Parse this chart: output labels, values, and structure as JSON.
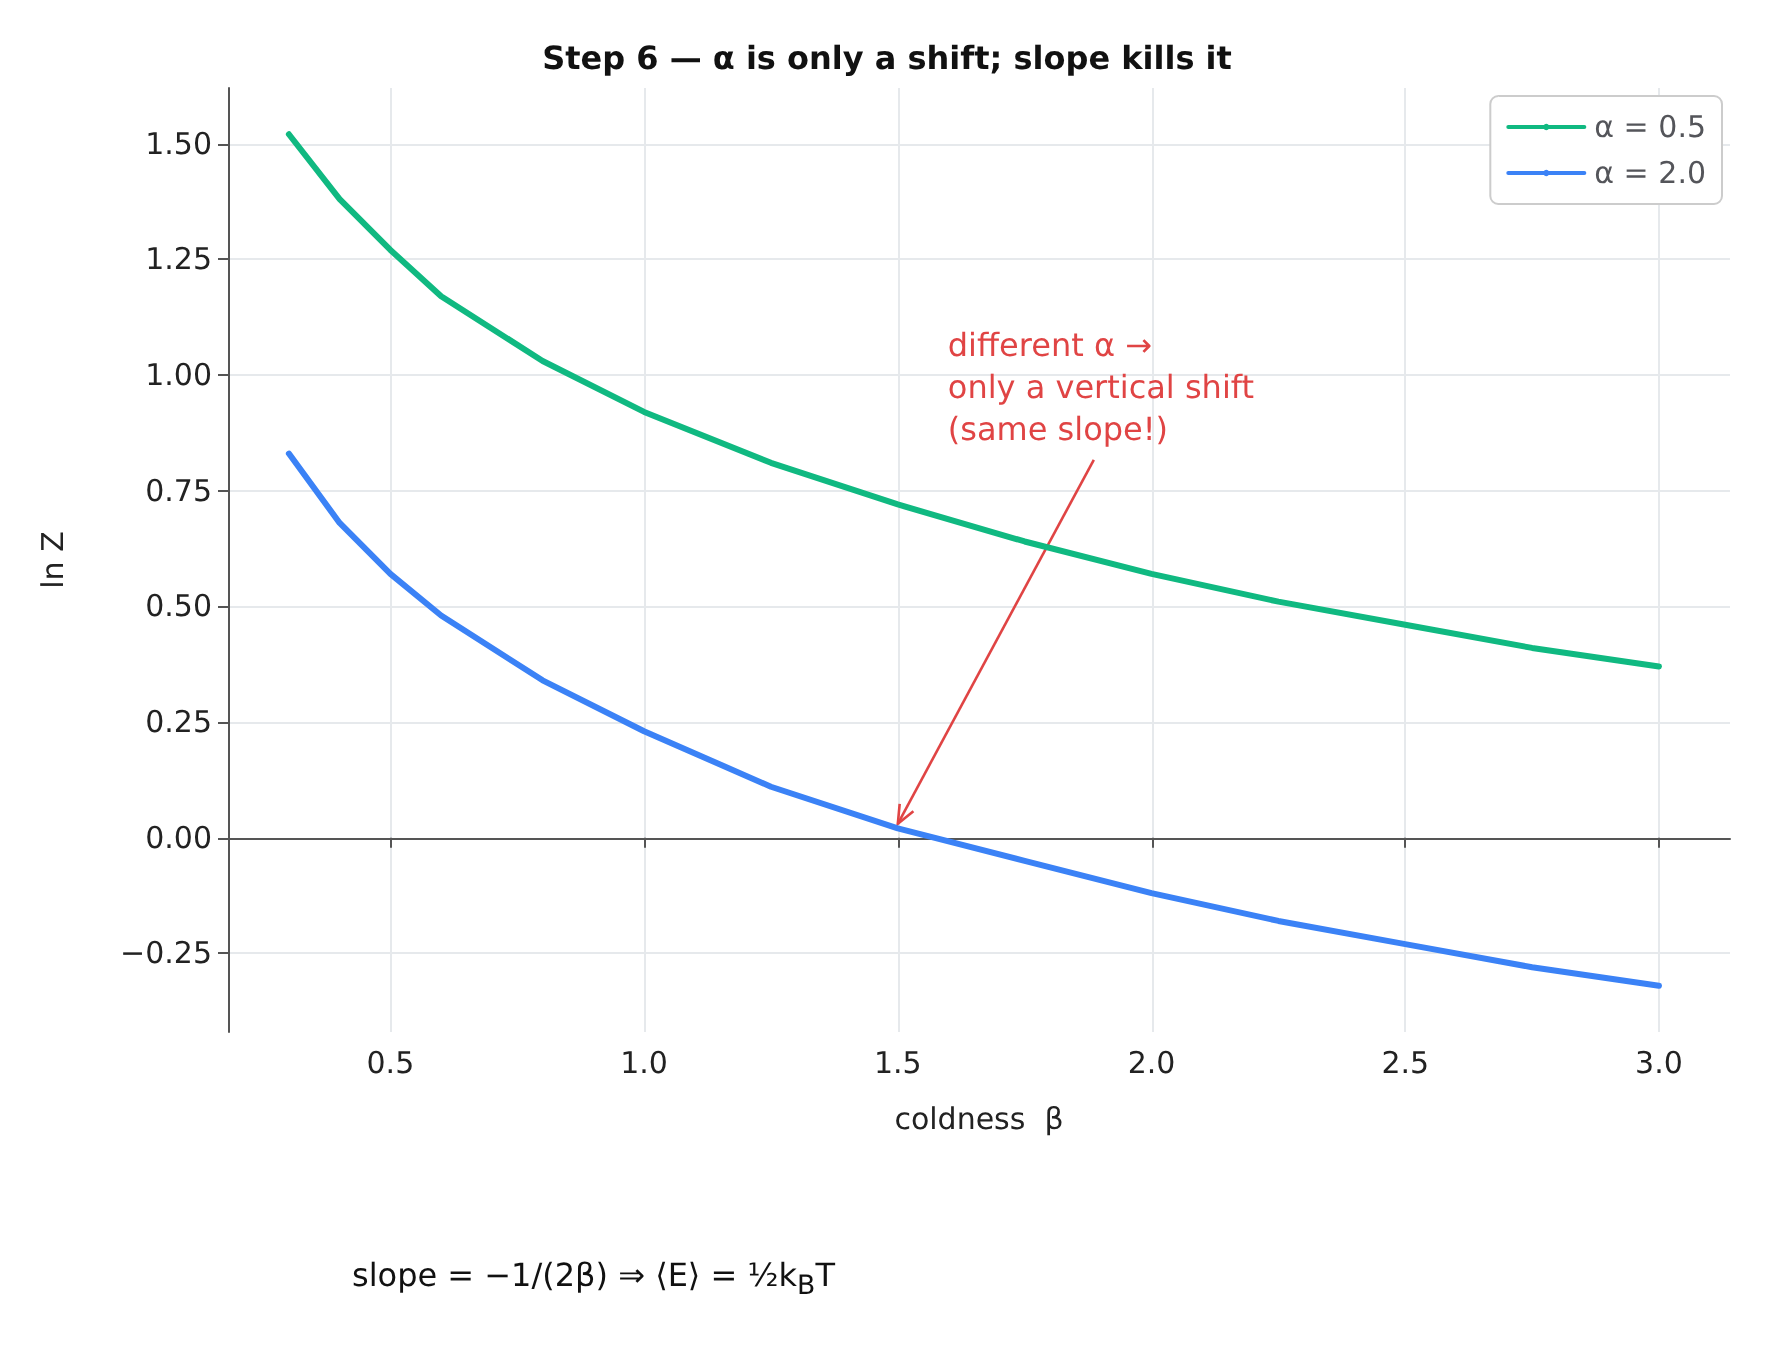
{
  "chart_data": {
    "type": "line",
    "title": "Step 6 — α is only a shift; slope kills it",
    "xlabel": "coldness  β",
    "ylabel": "ln Z",
    "x": [
      0.3,
      0.4,
      0.5,
      0.6,
      0.8,
      1.0,
      1.25,
      1.5,
      1.75,
      2.0,
      2.25,
      2.5,
      2.75,
      3.0
    ],
    "series": [
      {
        "name": "α = 0.5",
        "color": "#10b981",
        "values": [
          1.52,
          1.38,
          1.27,
          1.17,
          1.03,
          0.92,
          0.81,
          0.72,
          0.64,
          0.57,
          0.51,
          0.46,
          0.41,
          0.37
        ]
      },
      {
        "name": "α = 2.0",
        "color": "#3b82f6",
        "values": [
          0.83,
          0.68,
          0.57,
          0.48,
          0.34,
          0.23,
          0.11,
          0.02,
          -0.05,
          -0.12,
          -0.18,
          -0.23,
          -0.28,
          -0.32
        ]
      }
    ],
    "xlim": [
      0.18,
      3.14
    ],
    "xticks": [
      0.5,
      {
        "value": 1,
        "label": "1.0"
      },
      1.5,
      {
        "value": 2,
        "label": "2.0"
      },
      2.5,
      {
        "value": 3,
        "label": "3.0"
      }
    ],
    "ylim": [
      -0.42,
      1.62
    ],
    "yticks": [
      {
        "value": -0.25,
        "label": "−0.25"
      },
      {
        "value": 0,
        "label": "0.00"
      },
      {
        "value": 0.25,
        "label": "0.25"
      },
      {
        "value": 0.5,
        "label": "0.50"
      },
      {
        "value": 0.75,
        "label": "0.75"
      },
      {
        "value": 1,
        "label": "1.00"
      },
      {
        "value": 1.25,
        "label": "1.25"
      },
      {
        "value": 1.5,
        "label": "1.50"
      }
    ],
    "annotations": [
      {
        "text": "different α →\nonly a vertical shift\n(same slope!)",
        "x": 1.5,
        "y": 0.03
      },
      "slope = −1/(2β) ⇒ ⟨E⟩ = ½k$_{B}$T"
    ],
    "grid": true,
    "legend": "top right",
    "marker": "none",
    "line_style": "solid"
  }
}
